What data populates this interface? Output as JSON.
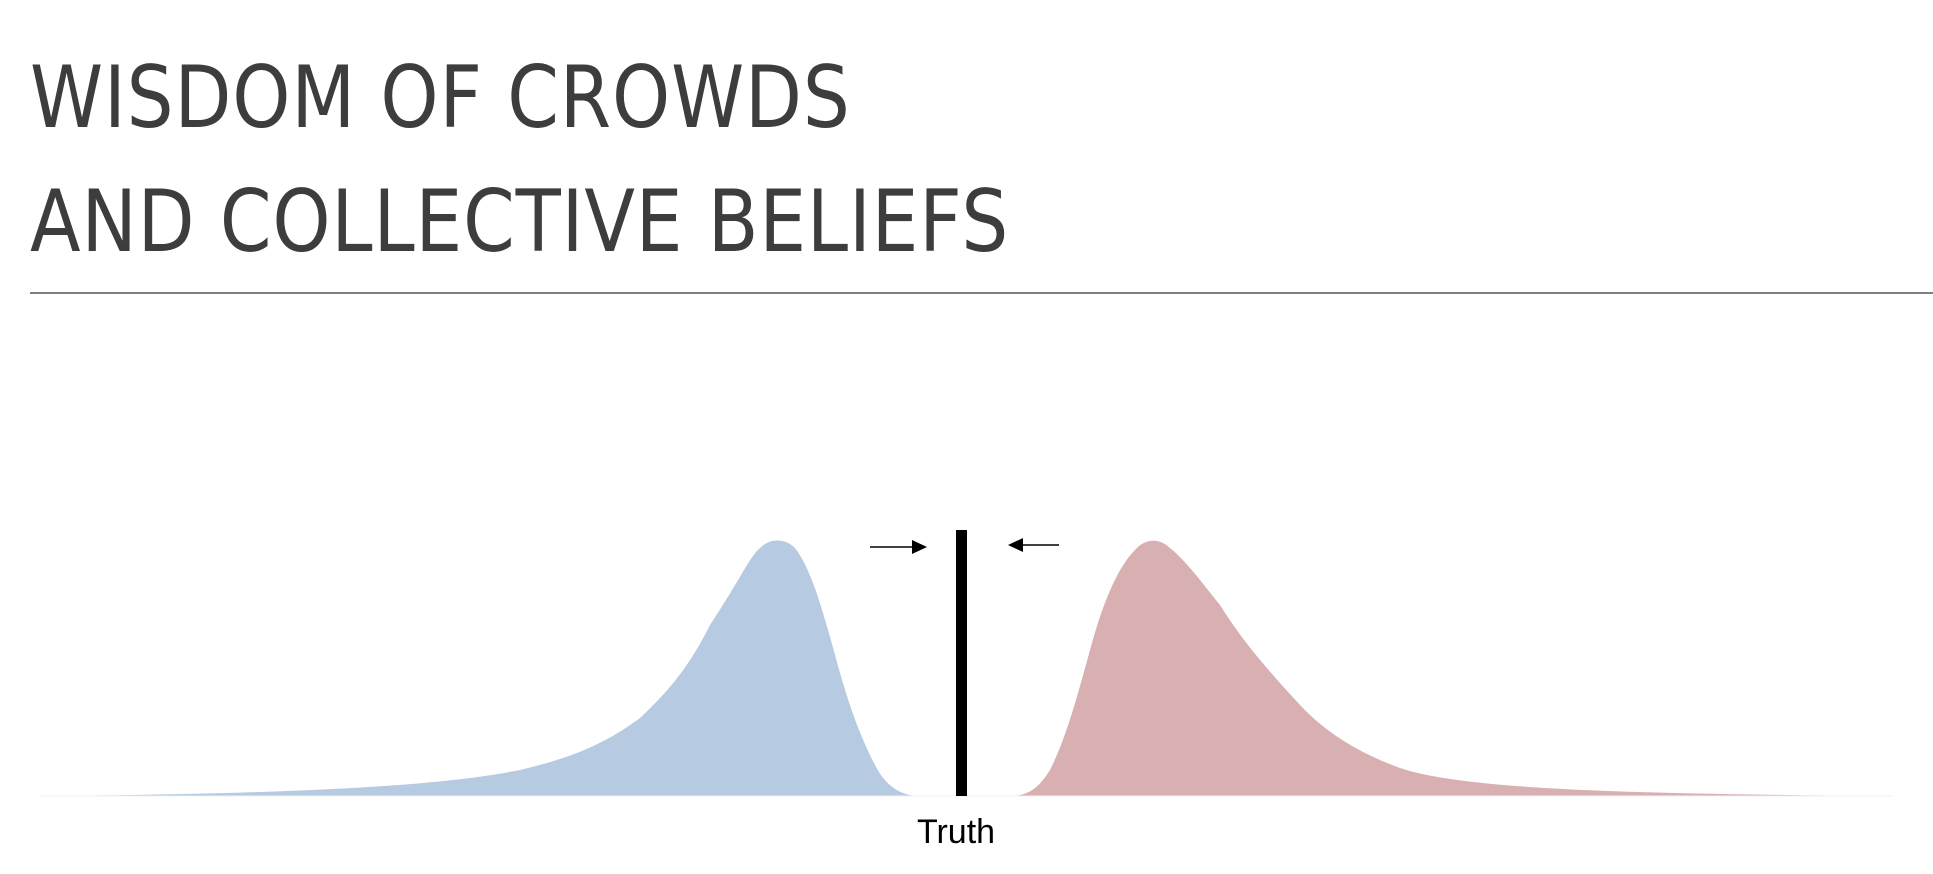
{
  "title": {
    "line1": "WISDOM OF CROWDS",
    "line2": "AND COLLECTIVE BELIEFS"
  },
  "truth_label": "Truth",
  "colors": {
    "title": "#3d3d3d",
    "rule": "#7f7f7f",
    "left_distribution": "#b6cae1",
    "right_distribution": "#d9b0b1",
    "truth_line": "#000000",
    "arrows": "#000000"
  },
  "icons": {
    "left_arrow": "arrow-right-icon",
    "right_arrow": "arrow-left-icon"
  }
}
